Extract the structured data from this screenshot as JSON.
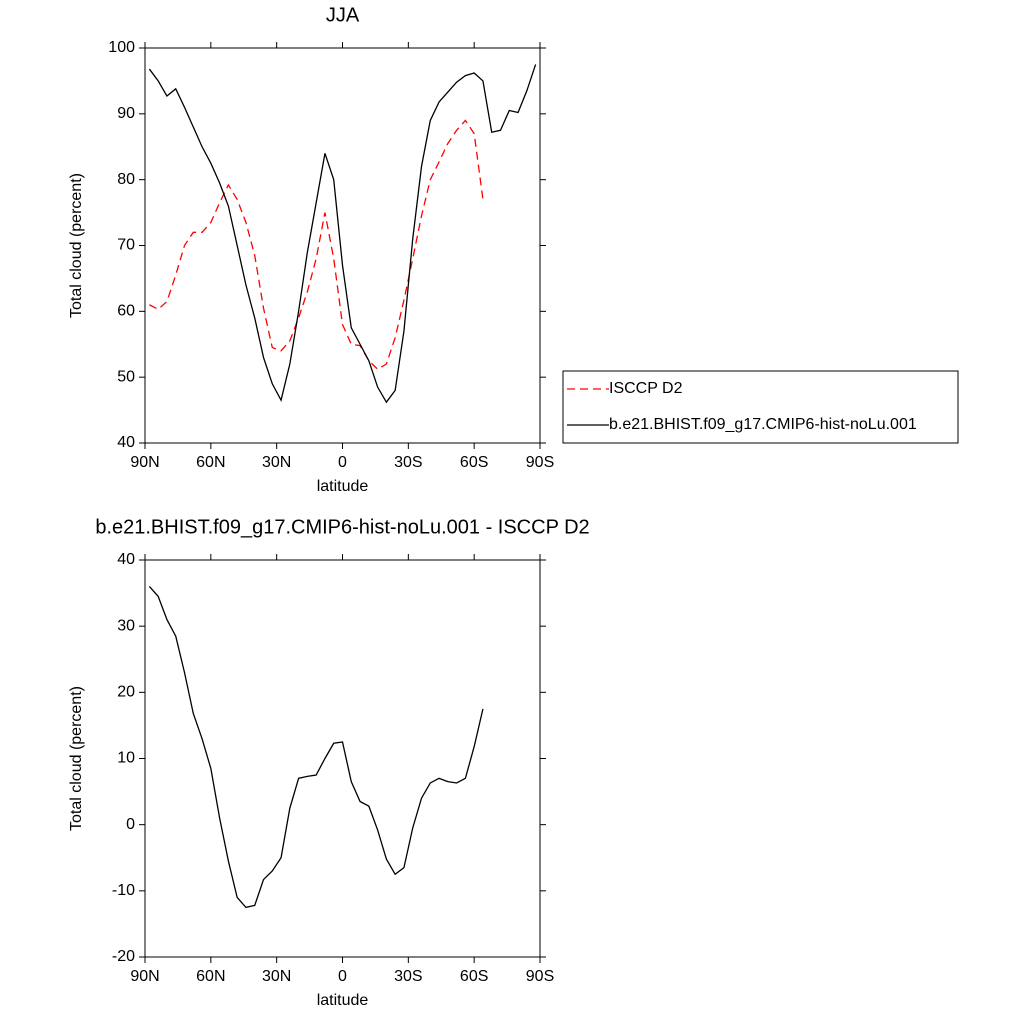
{
  "chart_data": [
    {
      "type": "line",
      "title": "JJA",
      "xlabel": "latitude",
      "ylabel": "Total cloud (percent)",
      "x": [
        88,
        84,
        80,
        76,
        72,
        68,
        64,
        60,
        56,
        52,
        48,
        44,
        40,
        36,
        32,
        28,
        24,
        20,
        16,
        12,
        8,
        4,
        0,
        -4,
        -8,
        -12,
        -16,
        -20,
        -24,
        -28,
        -32,
        -36,
        -40,
        -44,
        -48,
        -52,
        -56,
        -60,
        -64,
        -68,
        -72,
        -76,
        -80,
        -84,
        -88
      ],
      "xlim": [
        90,
        -90
      ],
      "xticks": [
        {
          "value": 90,
          "label": "90N"
        },
        {
          "value": 60,
          "label": "60N"
        },
        {
          "value": 30,
          "label": "30N"
        },
        0,
        {
          "value": -30,
          "label": "30S"
        },
        {
          "value": -60,
          "label": "60S"
        },
        {
          "value": -90,
          "label": "90S"
        }
      ],
      "ylim": [
        40,
        100
      ],
      "yticks": [
        40,
        50,
        60,
        70,
        80,
        90,
        100
      ],
      "legend": "outside-right",
      "series": [
        {
          "name": "ISCCP D2",
          "color": "#ff0000",
          "dashed": true,
          "values": [
            61,
            60.3,
            61.5,
            65.5,
            70,
            72,
            72,
            73.5,
            76.5,
            79.2,
            77,
            73.5,
            68.5,
            60.5,
            54.5,
            54,
            55.5,
            59,
            63,
            68,
            75,
            68,
            58,
            55,
            54.8,
            52.5,
            51.2,
            52,
            56,
            61.7,
            68,
            74.5,
            80,
            82.7,
            85.5,
            87.5,
            89,
            87,
            77,
            null,
            null,
            null,
            null,
            null,
            null
          ]
        },
        {
          "name": "b.e21.BHIST.f09_g17.CMIP6-hist-noLu.001",
          "color": "#000000",
          "dashed": false,
          "values": [
            96.8,
            95,
            92.7,
            93.8,
            91,
            88,
            85,
            82.5,
            79.5,
            76,
            70,
            64,
            59,
            53,
            49,
            46.5,
            52,
            60,
            69,
            76.5,
            84,
            80,
            67,
            57.5,
            55,
            52.5,
            48.5,
            46.2,
            48,
            57,
            71,
            82,
            89,
            91.8,
            93.3,
            94.8,
            95.8,
            96.2,
            95,
            87.2,
            87.5,
            90.5,
            90.2,
            93.5,
            97.5
          ]
        }
      ]
    },
    {
      "type": "line",
      "title": "b.e21.BHIST.f09_g17.CMIP6-hist-noLu.001 - ISCCP D2",
      "xlabel": "latitude",
      "ylabel": "Total cloud (percent)",
      "x": [
        88,
        84,
        80,
        76,
        72,
        68,
        64,
        60,
        56,
        52,
        48,
        44,
        40,
        36,
        32,
        28,
        24,
        20,
        16,
        12,
        8,
        4,
        0,
        -4,
        -8,
        -12,
        -16,
        -20,
        -24,
        -28,
        -32,
        -36,
        -40,
        -44,
        -48,
        -52,
        -56,
        -60,
        -64,
        -68,
        -72,
        -76,
        -80,
        -84,
        -88
      ],
      "xlim": [
        90,
        -90
      ],
      "xticks": [
        {
          "value": 90,
          "label": "90N"
        },
        {
          "value": 60,
          "label": "60N"
        },
        {
          "value": 30,
          "label": "30N"
        },
        0,
        {
          "value": -30,
          "label": "30S"
        },
        {
          "value": -60,
          "label": "60S"
        },
        {
          "value": -90,
          "label": "90S"
        }
      ],
      "ylim": [
        -20,
        40
      ],
      "yticks": [
        -20,
        -10,
        0,
        10,
        20,
        30,
        40
      ],
      "series": [
        {
          "color": "#000000",
          "dashed": false,
          "values": [
            36,
            34.5,
            31,
            28.5,
            23,
            16.8,
            13,
            8.5,
            1,
            -5.5,
            -11,
            -12.5,
            -12.2,
            -8.3,
            -7,
            -5,
            2.5,
            7,
            7.3,
            7.5,
            10,
            12.3,
            12.5,
            6.5,
            3.5,
            2.8,
            -0.8,
            -5.2,
            -7.5,
            -6.5,
            -0.5,
            4,
            6.3,
            7,
            6.5,
            6.3,
            7,
            11.8,
            17.5,
            null,
            null,
            null,
            null,
            null,
            null
          ]
        }
      ]
    }
  ]
}
